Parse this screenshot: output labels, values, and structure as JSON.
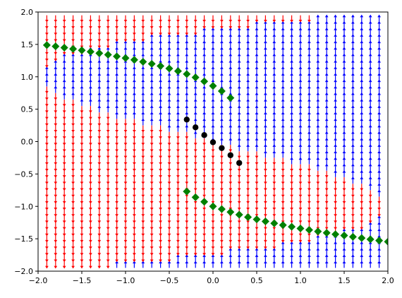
{
  "chart_data": {
    "type": "quiver",
    "title": "",
    "xlabel": "",
    "ylabel": "",
    "xlim": [
      -2.0,
      2.0
    ],
    "ylim": [
      -2.0,
      2.0
    ],
    "x_ticks": [
      "-2.0",
      "-1.5",
      "-1.0",
      "-0.5",
      "0.0",
      "0.5",
      "1.0",
      "1.5",
      "2.0"
    ],
    "y_ticks": [
      "-2.0",
      "-1.5",
      "-1.0",
      "-0.5",
      "0.0",
      "0.5",
      "1.0",
      "1.5",
      "2.0"
    ],
    "grid": false,
    "legend": "none",
    "vector_field": {
      "grid_x": [
        -1.9,
        1.9,
        0.1
      ],
      "grid_y": [
        -1.9,
        1.9,
        0.1
      ],
      "dx_field": "y^3 - 3y - x",
      "down_color": "#ff0000",
      "up_color": "#0000ff"
    },
    "series": [
      {
        "marker": "diamond",
        "color": "#008000",
        "points": [
          [
            -1.9,
            1.489
          ],
          [
            -1.8,
            1.47
          ],
          [
            -1.7,
            1.45
          ],
          [
            -1.6,
            1.43
          ],
          [
            -1.5,
            1.409
          ],
          [
            -1.4,
            1.387
          ],
          [
            -1.3,
            1.364
          ],
          [
            -1.2,
            1.34
          ],
          [
            -1.1,
            1.315
          ],
          [
            -1.0,
            1.289
          ],
          [
            -0.9,
            1.261
          ],
          [
            -0.8,
            1.231
          ],
          [
            -0.7,
            1.2
          ],
          [
            -0.6,
            1.166
          ],
          [
            -0.5,
            1.128
          ],
          [
            -0.4,
            1.087
          ],
          [
            -0.3,
            1.042
          ],
          [
            -0.2,
            0.99
          ],
          [
            -0.1,
            0.929
          ],
          [
            0.0,
            0.86
          ],
          [
            0.1,
            0.779
          ],
          [
            0.2,
            0.675
          ],
          [
            -0.3,
            -0.77
          ],
          [
            -0.2,
            -0.86
          ],
          [
            -0.1,
            -0.929
          ],
          [
            0.0,
            -1.0
          ],
          [
            0.1,
            -1.042
          ],
          [
            0.2,
            -1.087
          ],
          [
            0.3,
            -1.128
          ],
          [
            0.4,
            -1.166
          ],
          [
            0.5,
            -1.2
          ],
          [
            0.6,
            -1.231
          ],
          [
            0.7,
            -1.261
          ],
          [
            0.8,
            -1.289
          ],
          [
            0.9,
            -1.315
          ],
          [
            1.0,
            -1.34
          ],
          [
            1.1,
            -1.364
          ],
          [
            1.2,
            -1.387
          ],
          [
            1.3,
            -1.409
          ],
          [
            1.4,
            -1.43
          ],
          [
            1.5,
            -1.45
          ],
          [
            1.6,
            -1.47
          ],
          [
            1.7,
            -1.489
          ],
          [
            1.8,
            -1.508
          ],
          [
            1.9,
            -1.527
          ],
          [
            2.0,
            -1.545
          ]
        ]
      },
      {
        "marker": "circle",
        "color": "#000000",
        "points": [
          [
            -0.3,
            0.34
          ],
          [
            -0.2,
            0.22
          ],
          [
            -0.1,
            0.1
          ],
          [
            0.0,
            -0.01
          ],
          [
            0.1,
            -0.1
          ],
          [
            0.2,
            -0.21
          ],
          [
            0.3,
            -0.33
          ]
        ]
      }
    ]
  }
}
